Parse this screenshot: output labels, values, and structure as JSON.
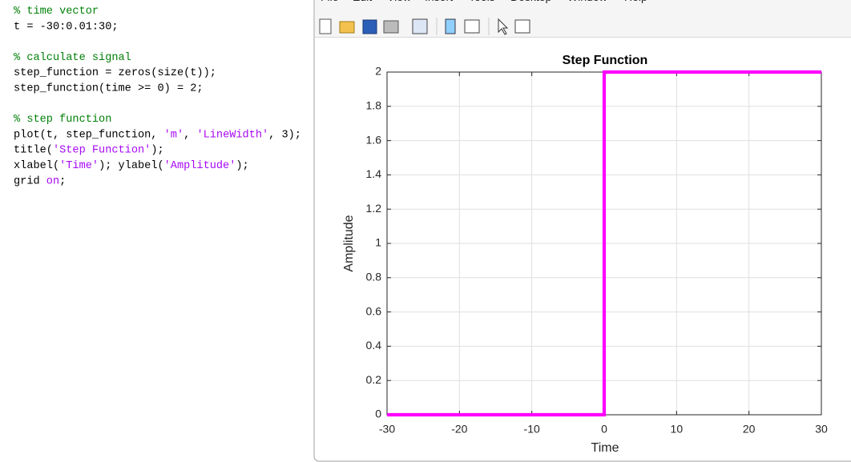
{
  "editor": {
    "blocks": [
      [
        [
          {
            "text": "% time vector",
            "color": "#028009"
          }
        ],
        [
          {
            "text": "t = -30:0.01:30;",
            "color": "#000000"
          }
        ]
      ],
      [
        [
          {
            "text": "% calculate signal",
            "color": "#028009"
          }
        ],
        [
          {
            "text": "step_function = zeros(size(t));",
            "color": "#000000"
          }
        ],
        [
          {
            "text": "step_function(time >= 0) = 2;",
            "color": "#000000"
          }
        ]
      ],
      [
        [
          {
            "text": "% step function",
            "color": "#028009"
          }
        ],
        [
          {
            "text": "plot(t, step_function, ",
            "color": "#000000"
          },
          {
            "text": "'m'",
            "color": "#a709f5"
          },
          {
            "text": ", ",
            "color": "#000000"
          },
          {
            "text": "'LineWidth'",
            "color": "#a709f5"
          },
          {
            "text": ", 3);",
            "color": "#000000"
          }
        ],
        [
          {
            "text": "title(",
            "color": "#000000"
          },
          {
            "text": "'Step Function'",
            "color": "#a709f5"
          },
          {
            "text": ");",
            "color": "#000000"
          }
        ],
        [
          {
            "text": "xlabel(",
            "color": "#000000"
          },
          {
            "text": "'Time'",
            "color": "#a709f5"
          },
          {
            "text": "); ylabel(",
            "color": "#000000"
          },
          {
            "text": "'Amplitude'",
            "color": "#a709f5"
          },
          {
            "text": ");",
            "color": "#000000"
          }
        ],
        [
          {
            "text": "grid ",
            "color": "#000000"
          },
          {
            "text": "on",
            "color": "#a709f5"
          },
          {
            "text": ";",
            "color": "#000000"
          }
        ]
      ]
    ]
  },
  "figure_window": {
    "menu": [
      "File",
      "Edit",
      "View",
      "Insert",
      "Tools",
      "Desktop",
      "Window",
      "Help"
    ]
  },
  "chart_data": {
    "type": "line",
    "title": "Step Function",
    "xlabel": "Time",
    "ylabel": "Amplitude",
    "x": [
      -30,
      0,
      0,
      30
    ],
    "series": [
      {
        "name": "step_function",
        "color": "#ff00ff",
        "line_width": 3,
        "values": [
          0,
          0,
          2,
          2
        ]
      }
    ],
    "xlim": [
      -30,
      30
    ],
    "xticks": [
      -30,
      -20,
      -10,
      0,
      10,
      20,
      30
    ],
    "ylim": [
      0,
      2
    ],
    "yticks": [
      0,
      0.2,
      0.4,
      0.6,
      0.8,
      1,
      1.2,
      1.4,
      1.6,
      1.8,
      2
    ],
    "grid": true
  }
}
